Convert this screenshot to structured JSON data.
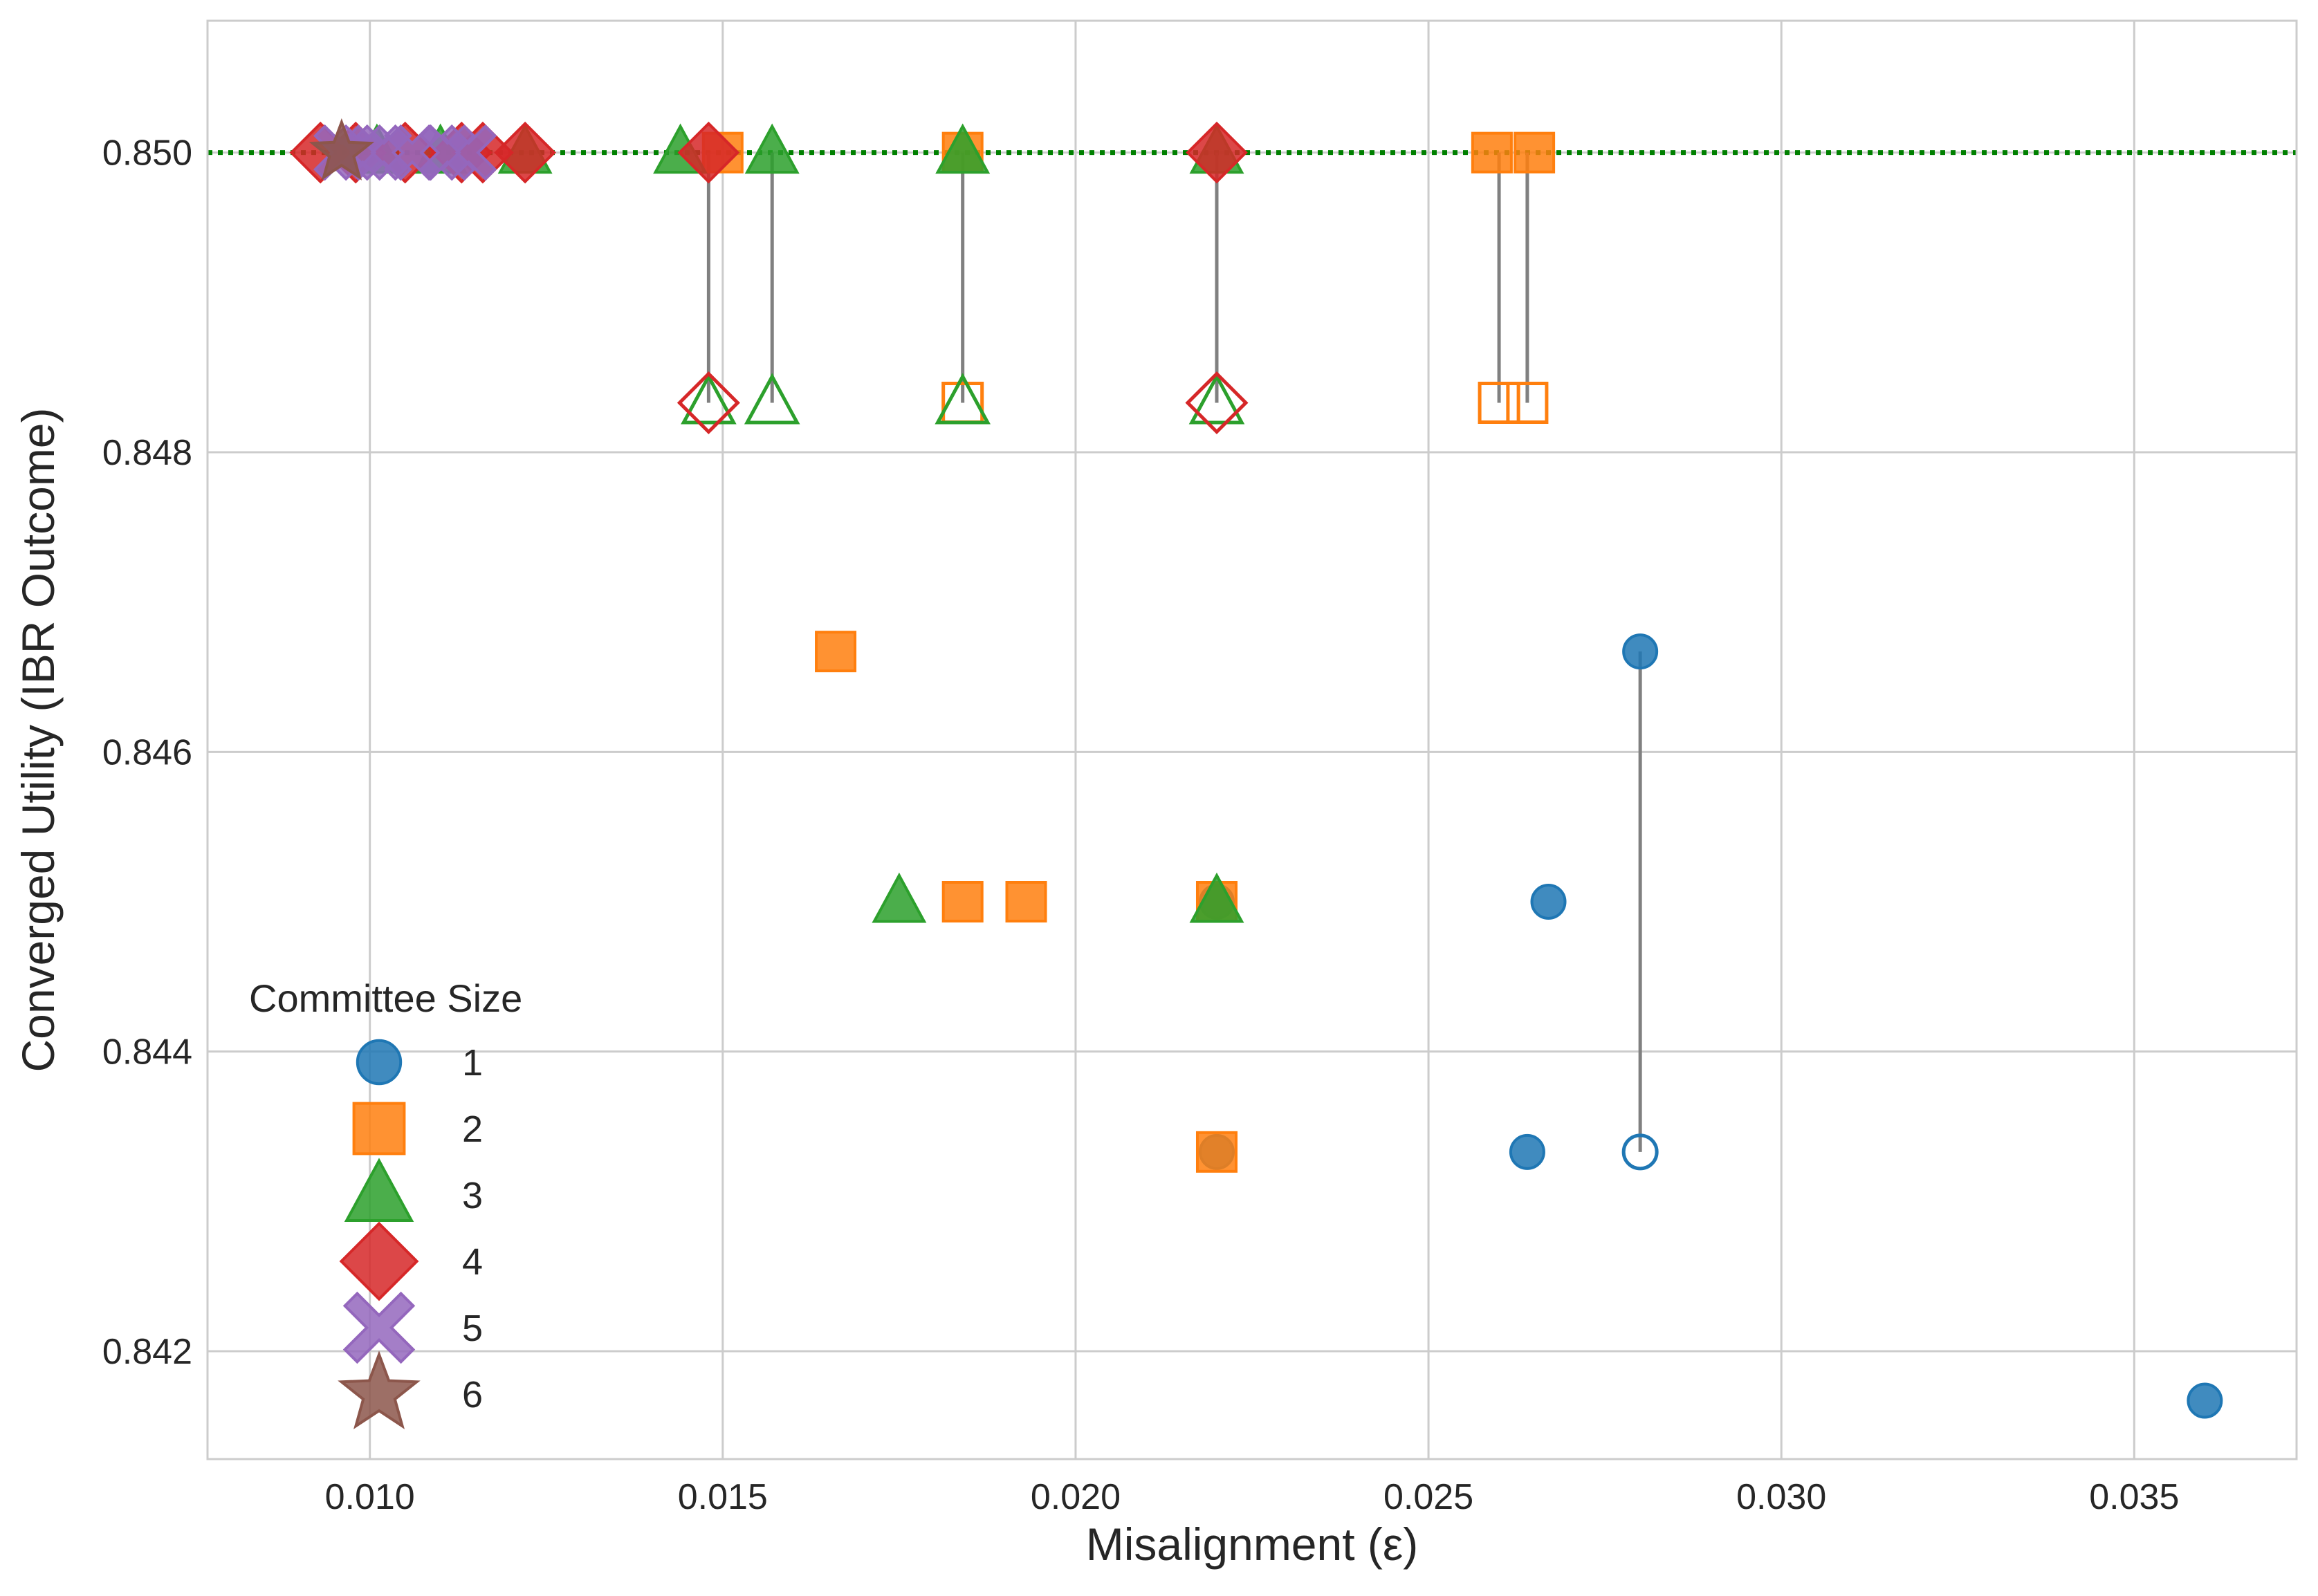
{
  "chart_data": {
    "type": "scatter",
    "title": "",
    "xlabel": "Misalignment (ε)",
    "ylabel": "Converged Utility (IBR Outcome)",
    "xlim": [
      0.0077,
      0.0373
    ],
    "ylim": [
      0.84128,
      0.85088
    ],
    "xticks": [
      0.01,
      0.015,
      0.02,
      0.025,
      0.03,
      0.035
    ],
    "xtick_labels": [
      "0.010",
      "0.015",
      "0.020",
      "0.025",
      "0.030",
      "0.035"
    ],
    "yticks": [
      0.842,
      0.844,
      0.846,
      0.848,
      0.85
    ],
    "ytick_labels": [
      "0.842",
      "0.844",
      "0.846",
      "0.848",
      "0.850"
    ],
    "grid": true,
    "reference_line": {
      "y": 0.85,
      "style": "dotted",
      "color": "#008000"
    },
    "legend": {
      "title": "Committee Size",
      "placement": "lower-left",
      "entries": [
        {
          "label": "1",
          "marker": "circle",
          "color": "#1f77b4"
        },
        {
          "label": "2",
          "marker": "square",
          "color": "#ff7f0e"
        },
        {
          "label": "3",
          "marker": "triangle",
          "color": "#2ca02c"
        },
        {
          "label": "4",
          "marker": "diamond",
          "color": "#d62728"
        },
        {
          "label": "5",
          "marker": "x",
          "color": "#9467bd"
        },
        {
          "label": "6",
          "marker": "star",
          "color": "#8c564b"
        }
      ]
    },
    "series": [
      {
        "name": "1",
        "marker": "circle",
        "color": "#1f77b4",
        "points": [
          {
            "x": 0.028,
            "y": 0.84667
          },
          {
            "x": 0.0267,
            "y": 0.845
          },
          {
            "x": 0.022,
            "y": 0.845
          },
          {
            "x": 0.0264,
            "y": 0.84333
          },
          {
            "x": 0.022,
            "y": 0.84333
          },
          {
            "x": 0.036,
            "y": 0.84167
          }
        ]
      },
      {
        "name": "2",
        "marker": "square",
        "color": "#ff7f0e",
        "points": [
          {
            "x": 0.015,
            "y": 0.85
          },
          {
            "x": 0.0184,
            "y": 0.85
          },
          {
            "x": 0.0259,
            "y": 0.85
          },
          {
            "x": 0.0265,
            "y": 0.85
          },
          {
            "x": 0.0166,
            "y": 0.84667
          },
          {
            "x": 0.0184,
            "y": 0.845
          },
          {
            "x": 0.0193,
            "y": 0.845
          },
          {
            "x": 0.022,
            "y": 0.845
          },
          {
            "x": 0.022,
            "y": 0.84333
          }
        ]
      },
      {
        "name": "3",
        "marker": "triangle",
        "color": "#2ca02c",
        "points": [
          {
            "x": 0.0101,
            "y": 0.85
          },
          {
            "x": 0.011,
            "y": 0.85
          },
          {
            "x": 0.0122,
            "y": 0.85
          },
          {
            "x": 0.0144,
            "y": 0.85
          },
          {
            "x": 0.0157,
            "y": 0.85
          },
          {
            "x": 0.0184,
            "y": 0.85
          },
          {
            "x": 0.022,
            "y": 0.85
          },
          {
            "x": 0.0175,
            "y": 0.845
          },
          {
            "x": 0.022,
            "y": 0.845
          }
        ]
      },
      {
        "name": "4",
        "marker": "diamond",
        "color": "#d62728",
        "points": [
          {
            "x": 0.0093,
            "y": 0.85
          },
          {
            "x": 0.0098,
            "y": 0.85
          },
          {
            "x": 0.0105,
            "y": 0.85
          },
          {
            "x": 0.0113,
            "y": 0.85
          },
          {
            "x": 0.0116,
            "y": 0.85
          },
          {
            "x": 0.0122,
            "y": 0.85
          },
          {
            "x": 0.0148,
            "y": 0.85
          },
          {
            "x": 0.022,
            "y": 0.85
          }
        ]
      },
      {
        "name": "5",
        "marker": "x",
        "color": "#9467bd",
        "points": [
          {
            "x": 0.0096,
            "y": 0.85
          },
          {
            "x": 0.0099,
            "y": 0.85
          },
          {
            "x": 0.0102,
            "y": 0.85
          },
          {
            "x": 0.0106,
            "y": 0.85
          },
          {
            "x": 0.0111,
            "y": 0.85
          },
          {
            "x": 0.0114,
            "y": 0.85
          }
        ]
      },
      {
        "name": "6",
        "marker": "star",
        "color": "#8c564b",
        "points": [
          {
            "x": 0.0096,
            "y": 0.85
          }
        ]
      }
    ],
    "open_points": [
      {
        "series": "1",
        "marker": "circle",
        "color": "#1f77b4",
        "x": 0.028,
        "y": 0.84333
      },
      {
        "series": "2",
        "marker": "square",
        "color": "#ff7f0e",
        "x": 0.0184,
        "y": 0.84833
      },
      {
        "series": "2",
        "marker": "square",
        "color": "#ff7f0e",
        "x": 0.026,
        "y": 0.84833
      },
      {
        "series": "2",
        "marker": "square",
        "color": "#ff7f0e",
        "x": 0.0264,
        "y": 0.84833
      },
      {
        "series": "3",
        "marker": "triangle",
        "color": "#2ca02c",
        "x": 0.0148,
        "y": 0.84833
      },
      {
        "series": "3",
        "marker": "triangle",
        "color": "#2ca02c",
        "x": 0.0157,
        "y": 0.84833
      },
      {
        "series": "3",
        "marker": "triangle",
        "color": "#2ca02c",
        "x": 0.0184,
        "y": 0.84833
      },
      {
        "series": "3",
        "marker": "triangle",
        "color": "#2ca02c",
        "x": 0.022,
        "y": 0.84833
      },
      {
        "series": "4",
        "marker": "diamond",
        "color": "#d62728",
        "x": 0.0148,
        "y": 0.84833
      },
      {
        "series": "4",
        "marker": "diamond",
        "color": "#d62728",
        "x": 0.022,
        "y": 0.84833
      }
    ],
    "connectors": [
      {
        "x": 0.0148,
        "y1": 0.85,
        "y2": 0.84833
      },
      {
        "x": 0.0157,
        "y1": 0.85,
        "y2": 0.84833
      },
      {
        "x": 0.0184,
        "y1": 0.85,
        "y2": 0.84833
      },
      {
        "x": 0.022,
        "y1": 0.85,
        "y2": 0.84833
      },
      {
        "x": 0.026,
        "y1": 0.85,
        "y2": 0.84833
      },
      {
        "x": 0.0264,
        "y1": 0.85,
        "y2": 0.84833
      },
      {
        "x": 0.028,
        "y1": 0.84667,
        "y2": 0.84333
      }
    ]
  }
}
